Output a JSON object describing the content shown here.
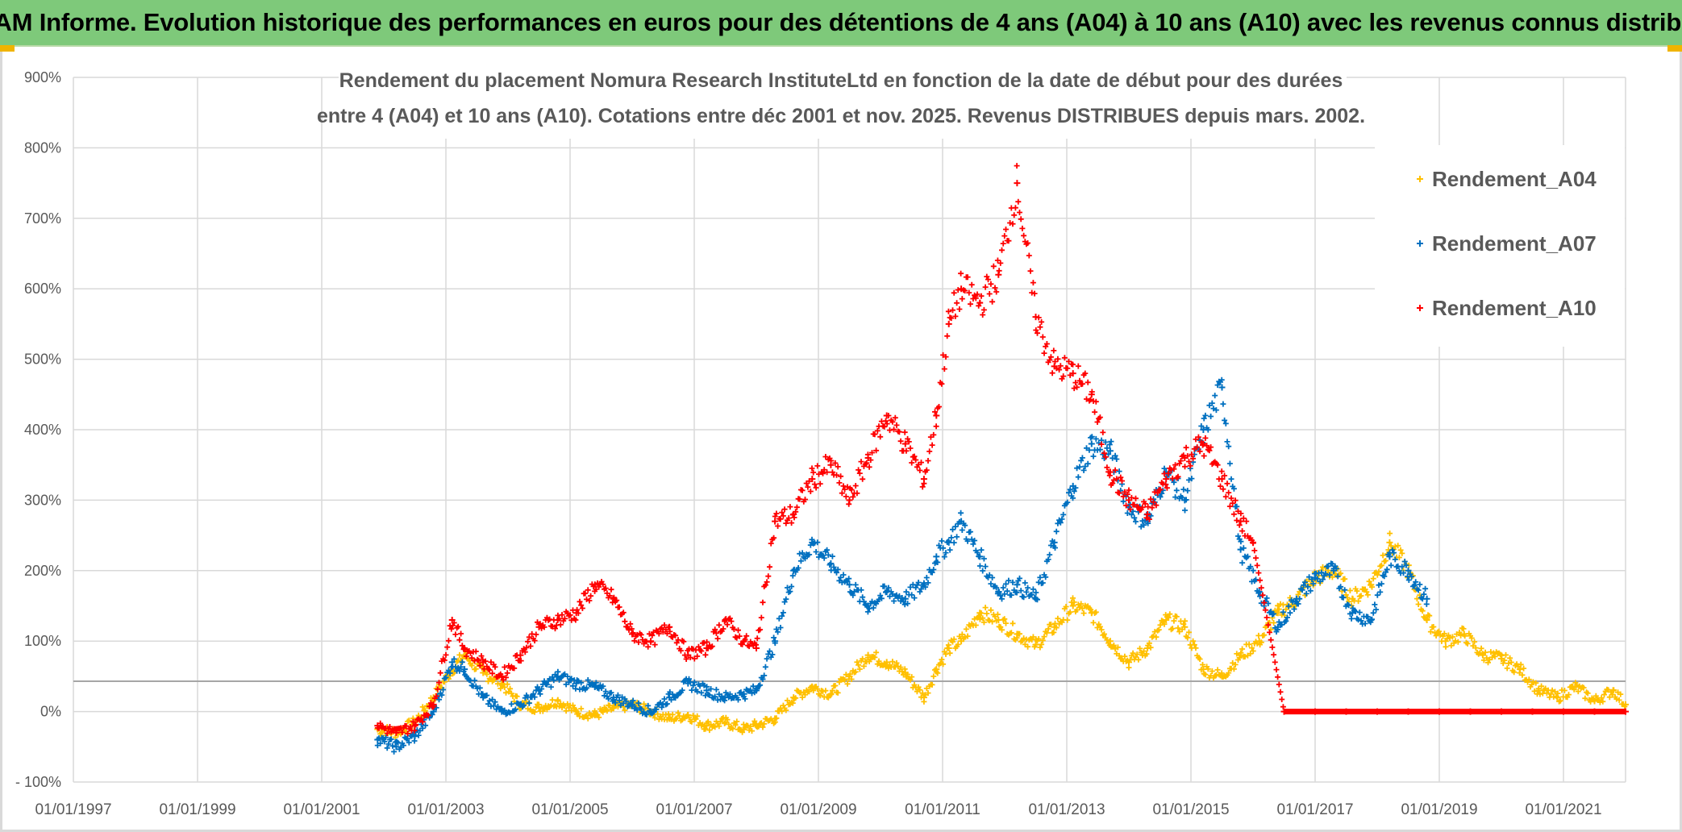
{
  "banner": {
    "title": "ADAM Informe. Evolution historique des performances en euros pour des détentions de 4 ans (A04) à 10 ans (A10) avec les revenus connus distribués"
  },
  "chart_data": {
    "type": "scatter",
    "title_line1": "Rendement du placement Nomura Research InstituteLtd en fonction de la date de début pour des durées",
    "title_line2": "entre 4 (A04) et 10 ans (A10). Cotations entre déc 2001 et nov. 2025. Revenus DISTRIBUES depuis mars. 2002.",
    "xlabel": "",
    "ylabel": "",
    "xlim": [
      1997.0,
      2022.0
    ],
    "ylim": [
      -100,
      900
    ],
    "y_ticks": [
      -100,
      0,
      100,
      200,
      300,
      400,
      500,
      600,
      700,
      800,
      900
    ],
    "y_tick_labels": [
      "- 100%",
      "0%",
      "100%",
      "200%",
      "300%",
      "400%",
      "500%",
      "600%",
      "700%",
      "800%",
      "900%"
    ],
    "x_tick_labels": [
      "01/01/1997",
      "01/01/1999",
      "01/01/2001",
      "01/01/2003",
      "01/01/2005",
      "01/01/2007",
      "01/01/2009",
      "01/01/2011",
      "01/01/2013",
      "01/01/2015",
      "01/01/2017",
      "01/01/2019",
      "01/01/2021"
    ],
    "x_tick_years": [
      1997,
      1999,
      2001,
      2003,
      2005,
      2007,
      2009,
      2011,
      2013,
      2015,
      2017,
      2019,
      2021
    ],
    "reference_line_y": 43,
    "marker": "+",
    "legend_position": "top-right",
    "series": [
      {
        "name": "Rendement_A04",
        "color": "#ffc000",
        "x": [
          2001.9,
          2002.2,
          2002.5,
          2002.8,
          2003.1,
          2003.3,
          2003.6,
          2003.9,
          2004.2,
          2004.5,
          2004.8,
          2005.1,
          2005.4,
          2005.7,
          2006.0,
          2006.3,
          2006.6,
          2006.9,
          2007.2,
          2007.5,
          2007.8,
          2008.0,
          2008.3,
          2008.6,
          2008.9,
          2009.2,
          2009.5,
          2009.8,
          2010.1,
          2010.4,
          2010.7,
          2010.9,
          2011.1,
          2011.3,
          2011.6,
          2011.9,
          2012.2,
          2012.5,
          2012.8,
          2013.1,
          2013.4,
          2013.7,
          2014.0,
          2014.3,
          2014.6,
          2014.9,
          2015.2,
          2015.5,
          2015.8,
          2016.1,
          2016.4,
          2016.7,
          2017.0,
          2017.3,
          2017.6,
          2017.9,
          2018.2,
          2018.5,
          2018.8,
          2019.1,
          2019.4,
          2019.7,
          2020.0,
          2020.3,
          2020.6,
          2020.9,
          2021.2,
          2021.5,
          2021.8,
          2022.0
        ],
        "y": [
          -25,
          -30,
          -15,
          20,
          60,
          80,
          55,
          40,
          10,
          5,
          15,
          0,
          -5,
          5,
          10,
          0,
          -10,
          -5,
          -20,
          -15,
          -25,
          -20,
          -10,
          20,
          35,
          25,
          50,
          80,
          70,
          55,
          20,
          60,
          90,
          100,
          140,
          130,
          110,
          95,
          120,
          150,
          140,
          100,
          70,
          90,
          130,
          120,
          60,
          50,
          80,
          100,
          140,
          160,
          190,
          200,
          160,
          180,
          240,
          200,
          130,
          100,
          110,
          80,
          75,
          60,
          30,
          20,
          35,
          15,
          30,
          10
        ]
      },
      {
        "name": "Rendement_A07",
        "color": "#0070c0",
        "x": [
          2001.9,
          2002.2,
          2002.5,
          2002.8,
          2003.1,
          2003.3,
          2003.6,
          2003.9,
          2004.2,
          2004.5,
          2004.8,
          2005.1,
          2005.4,
          2005.7,
          2006.0,
          2006.3,
          2006.6,
          2006.9,
          2007.2,
          2007.5,
          2007.8,
          2008.0,
          2008.3,
          2008.6,
          2008.9,
          2009.2,
          2009.5,
          2009.8,
          2010.1,
          2010.4,
          2010.7,
          2010.9,
          2011.1,
          2011.3,
          2011.6,
          2011.9,
          2012.2,
          2012.5,
          2012.8,
          2013.1,
          2013.4,
          2013.7,
          2014.0,
          2014.3,
          2014.6,
          2014.9,
          2015.2,
          2015.5,
          2015.8,
          2016.1,
          2016.4,
          2016.7,
          2017.0,
          2017.3,
          2017.6,
          2017.9,
          2018.2,
          2018.5,
          2018.8
        ],
        "y": [
          -40,
          -50,
          -35,
          0,
          70,
          60,
          20,
          0,
          10,
          30,
          50,
          40,
          35,
          20,
          10,
          0,
          20,
          40,
          30,
          20,
          25,
          30,
          100,
          200,
          240,
          210,
          180,
          150,
          170,
          160,
          180,
          220,
          240,
          270,
          220,
          170,
          180,
          160,
          240,
          320,
          380,
          370,
          290,
          270,
          340,
          300,
          400,
          460,
          230,
          170,
          120,
          160,
          190,
          200,
          140,
          130,
          220,
          200,
          160
        ]
      },
      {
        "name": "Rendement_A10",
        "color": "#ff0000",
        "x": [
          2001.9,
          2002.2,
          2002.5,
          2002.8,
          2003.1,
          2003.3,
          2003.6,
          2003.9,
          2004.2,
          2004.5,
          2004.8,
          2005.1,
          2005.4,
          2005.7,
          2006.0,
          2006.3,
          2006.6,
          2006.9,
          2007.2,
          2007.5,
          2007.8,
          2008.0,
          2008.3,
          2008.6,
          2008.9,
          2009.2,
          2009.5,
          2009.8,
          2010.1,
          2010.4,
          2010.7,
          2010.9,
          2011.1,
          2011.3,
          2011.6,
          2011.9,
          2012.2,
          2012.5,
          2012.8,
          2013.1,
          2013.4,
          2013.7,
          2014.0,
          2014.3,
          2014.6,
          2014.9,
          2015.2,
          2015.5,
          2015.8,
          2016.0,
          2016.5,
          2017.0,
          2017.5,
          2018.0,
          2018.5,
          2019.0,
          2019.5,
          2020.0,
          2020.5,
          2021.0,
          2021.5,
          2022.0
        ],
        "y": [
          -20,
          -30,
          -20,
          10,
          130,
          90,
          70,
          50,
          80,
          120,
          130,
          140,
          180,
          160,
          110,
          100,
          120,
          80,
          90,
          130,
          100,
          90,
          270,
          280,
          330,
          350,
          300,
          360,
          420,
          380,
          330,
          420,
          550,
          600,
          580,
          620,
          750,
          560,
          490,
          480,
          450,
          340,
          300,
          280,
          330,
          360,
          380,
          330,
          270,
          240,
          0,
          0,
          0,
          0,
          0,
          0,
          0,
          0,
          0,
          0,
          0,
          0
        ]
      }
    ]
  }
}
